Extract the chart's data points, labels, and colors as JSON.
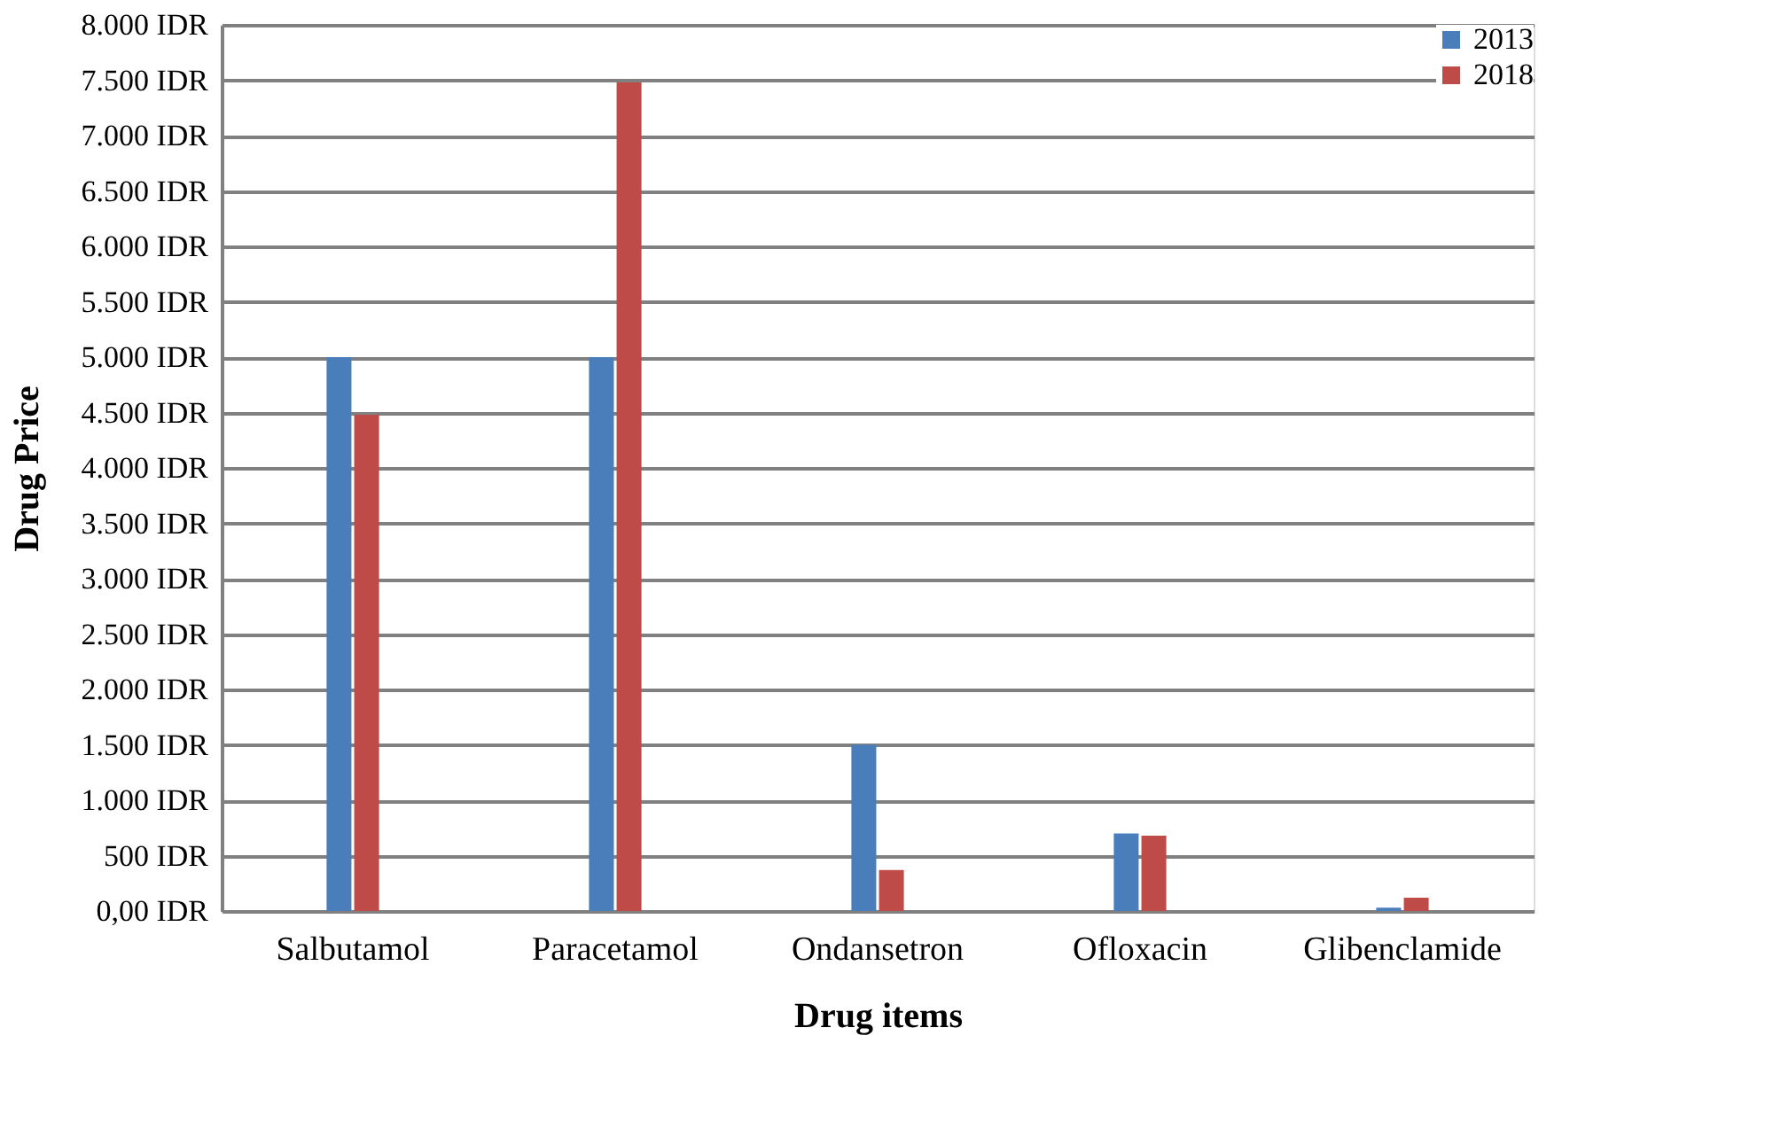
{
  "chart_data": {
    "type": "bar",
    "xlabel": "Drug items",
    "ylabel": "Drug Price",
    "categories": [
      "Salbutamol",
      "Paracetamol",
      "Ondansetron",
      "Ofloxacin",
      "Glibenclamide"
    ],
    "series": [
      {
        "name": "2013",
        "color": "#4a7ebb",
        "values": [
          5000,
          5000,
          1500,
          700,
          30
        ]
      },
      {
        "name": "2018",
        "color": "#be4b48",
        "values": [
          4480,
          7480,
          370,
          680,
          120
        ]
      }
    ],
    "ylim": [
      0,
      8000
    ],
    "yticks": [
      {
        "value": 0,
        "label": "0,00 IDR"
      },
      {
        "value": 500,
        "label": "500 IDR"
      },
      {
        "value": 1000,
        "label": "1.000 IDR"
      },
      {
        "value": 1500,
        "label": "1.500 IDR"
      },
      {
        "value": 2000,
        "label": "2.000 IDR"
      },
      {
        "value": 2500,
        "label": "2.500 IDR"
      },
      {
        "value": 3000,
        "label": "3.000 IDR"
      },
      {
        "value": 3500,
        "label": "3.500 IDR"
      },
      {
        "value": 4000,
        "label": "4.000 IDR"
      },
      {
        "value": 4500,
        "label": "4.500 IDR"
      },
      {
        "value": 5000,
        "label": "5.000 IDR"
      },
      {
        "value": 5500,
        "label": "5.500 IDR"
      },
      {
        "value": 6000,
        "label": "6.000 IDR"
      },
      {
        "value": 6500,
        "label": "6.500 IDR"
      },
      {
        "value": 7000,
        "label": "7.000 IDR"
      },
      {
        "value": 7500,
        "label": "7.500 IDR"
      },
      {
        "value": 8000,
        "label": "8.000 IDR"
      }
    ],
    "grid": "y",
    "legend": "top right"
  }
}
